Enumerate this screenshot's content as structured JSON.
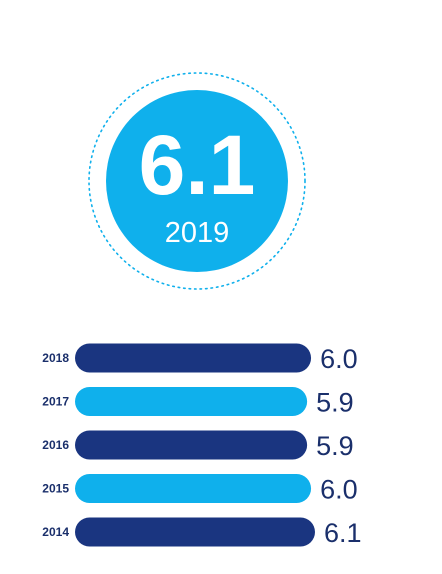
{
  "colors": {
    "light_blue": "#0fb0ec",
    "dark_blue": "#1a3580",
    "text_dark": "#1a2f6b",
    "white": "#ffffff"
  },
  "hero": {
    "value": "6.1",
    "year": "2019"
  },
  "chart_data": {
    "type": "bar",
    "orientation": "horizontal",
    "categories": [
      "2018",
      "2017",
      "2016",
      "2015",
      "2014"
    ],
    "values": [
      6.0,
      5.9,
      5.9,
      6.0,
      6.1
    ],
    "value_labels": [
      "6.0",
      "5.9",
      "5.9",
      "6.0",
      "6.1"
    ],
    "bar_colors": [
      "dark_blue",
      "light_blue",
      "dark_blue",
      "light_blue",
      "dark_blue"
    ],
    "xlim": [
      0,
      6.1
    ],
    "grid": false
  }
}
